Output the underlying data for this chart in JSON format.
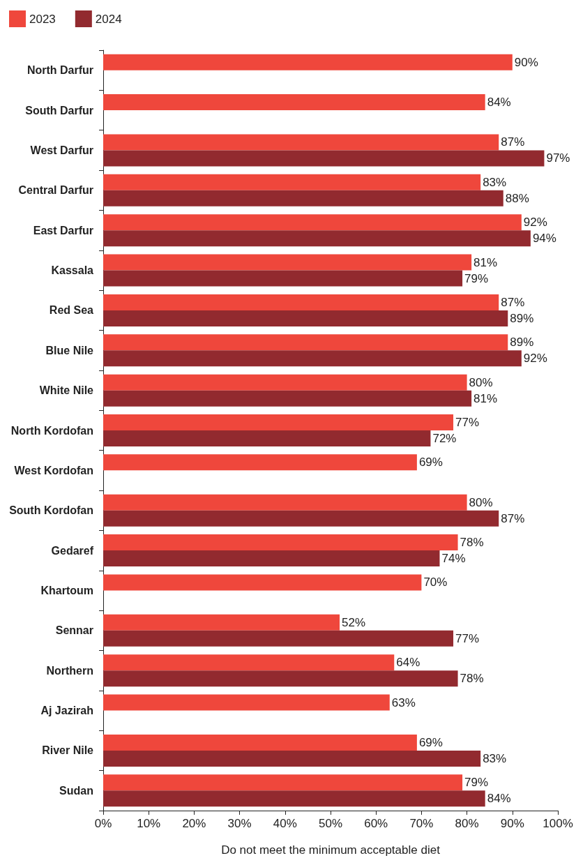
{
  "chart_data": {
    "type": "bar",
    "orientation": "horizontal",
    "xlabel": "Do not meet the minimum acceptable diet",
    "categories": [
      "North Darfur",
      "South Darfur",
      "West Darfur",
      "Central Darfur",
      "East Darfur",
      "Kassala",
      "Red Sea",
      "Blue Nile",
      "White Nile",
      "North Kordofan",
      "West Kordofan",
      "South Kordofan",
      "Gedaref",
      "Khartoum",
      "Sennar",
      "Northern",
      "Aj Jazirah",
      "River Nile",
      "Sudan"
    ],
    "series": [
      {
        "name": "2023",
        "color": "#ef473c",
        "values": [
          90,
          84,
          87,
          83,
          92,
          81,
          87,
          89,
          80,
          77,
          69,
          80,
          78,
          70,
          52,
          64,
          63,
          69,
          79
        ],
        "value_labels": [
          "90%",
          "84%",
          "87%",
          "83%",
          "92%",
          "81%",
          "87%",
          "89%",
          "80%",
          "77%",
          "69%",
          "80%",
          "78%",
          "70%",
          "52%",
          "64%",
          "63%",
          "69%",
          "79%"
        ]
      },
      {
        "name": "2024",
        "color": "#922a2f",
        "values": [
          null,
          null,
          97,
          88,
          94,
          79,
          89,
          92,
          81,
          72,
          null,
          87,
          74,
          null,
          77,
          78,
          null,
          83,
          84
        ],
        "value_labels": [
          null,
          null,
          "97%",
          "88%",
          "94%",
          "79%",
          "89%",
          "92%",
          "81%",
          "72%",
          null,
          "87%",
          "74%",
          null,
          "77%",
          "78%",
          null,
          "83%",
          "84%"
        ]
      }
    ],
    "xlim": [
      0,
      100
    ],
    "xticks": [
      {
        "value": 0,
        "label": "0%"
      },
      {
        "value": 10,
        "label": "10%"
      },
      {
        "value": 20,
        "label": "20%"
      },
      {
        "value": 30,
        "label": "30%"
      },
      {
        "value": 40,
        "label": "40%"
      },
      {
        "value": 50,
        "label": "50%"
      },
      {
        "value": 60,
        "label": "60%"
      },
      {
        "value": 70,
        "label": "70%"
      },
      {
        "value": 80,
        "label": "80%"
      },
      {
        "value": 90,
        "label": "90%"
      },
      {
        "value": 100,
        "label": "100%"
      }
    ],
    "grid": false,
    "legend": "top left"
  }
}
